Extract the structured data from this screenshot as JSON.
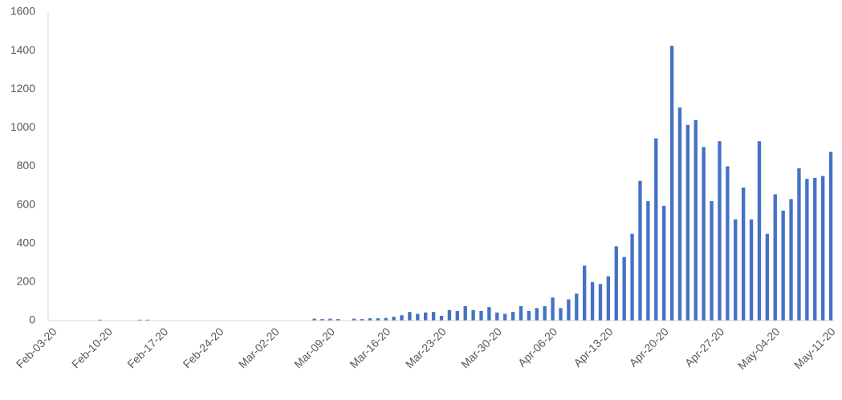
{
  "chart_data": {
    "type": "bar",
    "color": "#4472c4",
    "categories": [
      "Feb-03-20",
      null,
      null,
      null,
      null,
      null,
      null,
      "Feb-10-20",
      null,
      null,
      null,
      null,
      null,
      null,
      "Feb-17-20",
      null,
      null,
      null,
      null,
      null,
      null,
      "Feb-24-20",
      null,
      null,
      null,
      null,
      null,
      null,
      "Mar-02-20",
      null,
      null,
      null,
      null,
      null,
      null,
      "Mar-09-20",
      null,
      null,
      null,
      null,
      null,
      null,
      "Mar-16-20",
      null,
      null,
      null,
      null,
      null,
      null,
      "Mar-23-20",
      null,
      null,
      null,
      null,
      null,
      null,
      "Mar-30-20",
      null,
      null,
      null,
      null,
      null,
      null,
      "Apr-06-20",
      null,
      null,
      null,
      null,
      null,
      null,
      "Apr-13-20",
      null,
      null,
      null,
      null,
      null,
      null,
      "Apr-20-20",
      null,
      null,
      null,
      null,
      null,
      null,
      "Apr-27-20",
      null,
      null,
      null,
      null,
      null,
      null,
      "May-04-20",
      null,
      null,
      null,
      null,
      null,
      null,
      "May-11-20"
    ],
    "values": [
      0,
      0,
      0,
      0,
      0,
      0,
      5,
      0,
      0,
      0,
      0,
      5,
      5,
      0,
      0,
      0,
      0,
      0,
      0,
      0,
      0,
      0,
      0,
      0,
      0,
      0,
      0,
      0,
      0,
      0,
      0,
      0,
      0,
      10,
      8,
      10,
      8,
      0,
      10,
      8,
      12,
      12,
      14,
      20,
      28,
      45,
      35,
      42,
      45,
      25,
      55,
      50,
      75,
      55,
      50,
      70,
      42,
      35,
      45,
      75,
      50,
      65,
      75,
      120,
      65,
      110,
      140,
      285,
      200,
      190,
      230,
      385,
      330,
      450,
      725,
      620,
      945,
      595,
      1425,
      1105,
      1015,
      1040,
      900,
      620,
      930,
      800,
      525,
      690,
      525,
      930,
      450,
      655,
      570,
      630,
      790,
      735,
      740,
      750,
      875
    ],
    "ylim": [
      0,
      1600
    ],
    "yticks": [
      0,
      200,
      400,
      600,
      800,
      1000,
      1200,
      1400,
      1600
    ],
    "grid": false
  }
}
